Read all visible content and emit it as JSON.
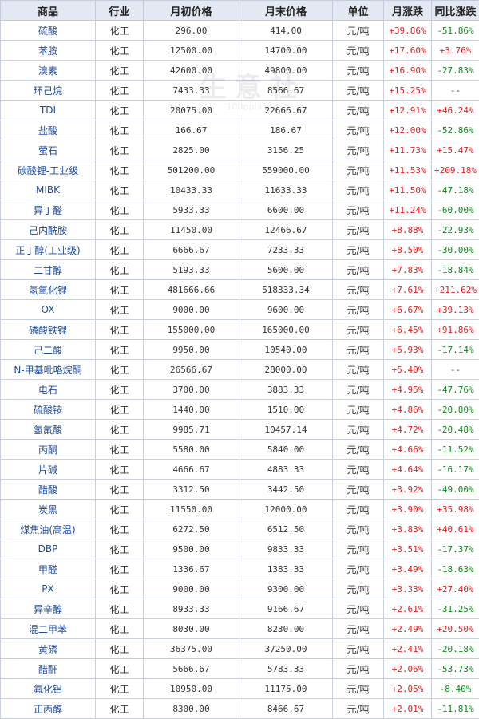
{
  "colors": {
    "up": "#e0201e",
    "down": "#0a8a18",
    "name_link": "#1f4b9c",
    "header_bg": "#e4e8f2"
  },
  "watermark": {
    "text": "生意社",
    "url": "100ppi.com"
  },
  "table": {
    "headers": [
      "商品",
      "行业",
      "月初价格",
      "月末价格",
      "单位",
      "月涨跌",
      "同比涨跌"
    ],
    "rows": [
      {
        "name": "硫酸",
        "industry": "化工",
        "start": "296.00",
        "end": "414.00",
        "unit": "元/吨",
        "mchg": "+39.86%",
        "ychg": "-51.86%"
      },
      {
        "name": "苯胺",
        "industry": "化工",
        "start": "12500.00",
        "end": "14700.00",
        "unit": "元/吨",
        "mchg": "+17.60%",
        "ychg": "+3.76%"
      },
      {
        "name": "溴素",
        "industry": "化工",
        "start": "42600.00",
        "end": "49800.00",
        "unit": "元/吨",
        "mchg": "+16.90%",
        "ychg": "-27.83%"
      },
      {
        "name": "环己烷",
        "industry": "化工",
        "start": "7433.33",
        "end": "8566.67",
        "unit": "元/吨",
        "mchg": "+15.25%",
        "ychg": "--"
      },
      {
        "name": "TDI",
        "industry": "化工",
        "start": "20075.00",
        "end": "22666.67",
        "unit": "元/吨",
        "mchg": "+12.91%",
        "ychg": "+46.24%"
      },
      {
        "name": "盐酸",
        "industry": "化工",
        "start": "166.67",
        "end": "186.67",
        "unit": "元/吨",
        "mchg": "+12.00%",
        "ychg": "-52.86%"
      },
      {
        "name": "萤石",
        "industry": "化工",
        "start": "2825.00",
        "end": "3156.25",
        "unit": "元/吨",
        "mchg": "+11.73%",
        "ychg": "+15.47%"
      },
      {
        "name": "碳酸锂-工业级",
        "industry": "化工",
        "start": "501200.00",
        "end": "559000.00",
        "unit": "元/吨",
        "mchg": "+11.53%",
        "ychg": "+209.18%"
      },
      {
        "name": "MIBK",
        "industry": "化工",
        "start": "10433.33",
        "end": "11633.33",
        "unit": "元/吨",
        "mchg": "+11.50%",
        "ychg": "-47.18%"
      },
      {
        "name": "异丁醛",
        "industry": "化工",
        "start": "5933.33",
        "end": "6600.00",
        "unit": "元/吨",
        "mchg": "+11.24%",
        "ychg": "-60.00%"
      },
      {
        "name": "己内酰胺",
        "industry": "化工",
        "start": "11450.00",
        "end": "12466.67",
        "unit": "元/吨",
        "mchg": "+8.88%",
        "ychg": "-22.93%"
      },
      {
        "name": "正丁醇(工业级)",
        "industry": "化工",
        "start": "6666.67",
        "end": "7233.33",
        "unit": "元/吨",
        "mchg": "+8.50%",
        "ychg": "-30.00%"
      },
      {
        "name": "二甘醇",
        "industry": "化工",
        "start": "5193.33",
        "end": "5600.00",
        "unit": "元/吨",
        "mchg": "+7.83%",
        "ychg": "-18.84%"
      },
      {
        "name": "氢氧化锂",
        "industry": "化工",
        "start": "481666.66",
        "end": "518333.34",
        "unit": "元/吨",
        "mchg": "+7.61%",
        "ychg": "+211.62%"
      },
      {
        "name": "OX",
        "industry": "化工",
        "start": "9000.00",
        "end": "9600.00",
        "unit": "元/吨",
        "mchg": "+6.67%",
        "ychg": "+39.13%"
      },
      {
        "name": "磷酸铁锂",
        "industry": "化工",
        "start": "155000.00",
        "end": "165000.00",
        "unit": "元/吨",
        "mchg": "+6.45%",
        "ychg": "+91.86%"
      },
      {
        "name": "己二酸",
        "industry": "化工",
        "start": "9950.00",
        "end": "10540.00",
        "unit": "元/吨",
        "mchg": "+5.93%",
        "ychg": "-17.14%"
      },
      {
        "name": "N-甲基吡咯烷酮",
        "industry": "化工",
        "start": "26566.67",
        "end": "28000.00",
        "unit": "元/吨",
        "mchg": "+5.40%",
        "ychg": "--"
      },
      {
        "name": "电石",
        "industry": "化工",
        "start": "3700.00",
        "end": "3883.33",
        "unit": "元/吨",
        "mchg": "+4.95%",
        "ychg": "-47.76%"
      },
      {
        "name": "硫酸铵",
        "industry": "化工",
        "start": "1440.00",
        "end": "1510.00",
        "unit": "元/吨",
        "mchg": "+4.86%",
        "ychg": "-20.80%"
      },
      {
        "name": "氢氟酸",
        "industry": "化工",
        "start": "9985.71",
        "end": "10457.14",
        "unit": "元/吨",
        "mchg": "+4.72%",
        "ychg": "-20.48%"
      },
      {
        "name": "丙酮",
        "industry": "化工",
        "start": "5580.00",
        "end": "5840.00",
        "unit": "元/吨",
        "mchg": "+4.66%",
        "ychg": "-11.52%"
      },
      {
        "name": "片碱",
        "industry": "化工",
        "start": "4666.67",
        "end": "4883.33",
        "unit": "元/吨",
        "mchg": "+4.64%",
        "ychg": "-16.17%"
      },
      {
        "name": "醋酸",
        "industry": "化工",
        "start": "3312.50",
        "end": "3442.50",
        "unit": "元/吨",
        "mchg": "+3.92%",
        "ychg": "-49.00%"
      },
      {
        "name": "炭黑",
        "industry": "化工",
        "start": "11550.00",
        "end": "12000.00",
        "unit": "元/吨",
        "mchg": "+3.90%",
        "ychg": "+35.98%"
      },
      {
        "name": "煤焦油(高温)",
        "industry": "化工",
        "start": "6272.50",
        "end": "6512.50",
        "unit": "元/吨",
        "mchg": "+3.83%",
        "ychg": "+40.61%"
      },
      {
        "name": "DBP",
        "industry": "化工",
        "start": "9500.00",
        "end": "9833.33",
        "unit": "元/吨",
        "mchg": "+3.51%",
        "ychg": "-17.37%"
      },
      {
        "name": "甲醛",
        "industry": "化工",
        "start": "1336.67",
        "end": "1383.33",
        "unit": "元/吨",
        "mchg": "+3.49%",
        "ychg": "-18.63%"
      },
      {
        "name": "PX",
        "industry": "化工",
        "start": "9000.00",
        "end": "9300.00",
        "unit": "元/吨",
        "mchg": "+3.33%",
        "ychg": "+27.40%"
      },
      {
        "name": "异辛醇",
        "industry": "化工",
        "start": "8933.33",
        "end": "9166.67",
        "unit": "元/吨",
        "mchg": "+2.61%",
        "ychg": "-31.25%"
      },
      {
        "name": "混二甲苯",
        "industry": "化工",
        "start": "8030.00",
        "end": "8230.00",
        "unit": "元/吨",
        "mchg": "+2.49%",
        "ychg": "+20.50%"
      },
      {
        "name": "黄磷",
        "industry": "化工",
        "start": "36375.00",
        "end": "37250.00",
        "unit": "元/吨",
        "mchg": "+2.41%",
        "ychg": "-20.18%"
      },
      {
        "name": "醋酐",
        "industry": "化工",
        "start": "5666.67",
        "end": "5783.33",
        "unit": "元/吨",
        "mchg": "+2.06%",
        "ychg": "-53.73%"
      },
      {
        "name": "氟化铝",
        "industry": "化工",
        "start": "10950.00",
        "end": "11175.00",
        "unit": "元/吨",
        "mchg": "+2.05%",
        "ychg": "-8.40%"
      },
      {
        "name": "正丙醇",
        "industry": "化工",
        "start": "8300.00",
        "end": "8466.67",
        "unit": "元/吨",
        "mchg": "+2.01%",
        "ychg": "-11.81%"
      }
    ]
  }
}
